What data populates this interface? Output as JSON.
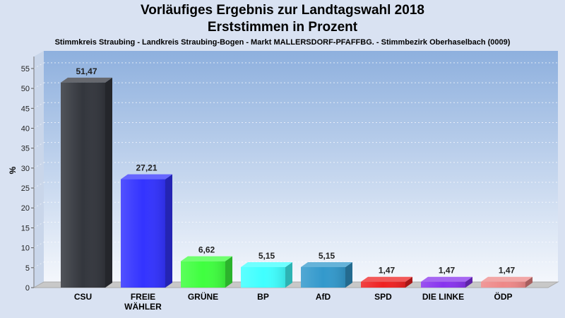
{
  "chart_data": {
    "type": "bar",
    "title": "Vorläufiges Ergebnis zur Landtagswahl 2018",
    "subtitle": "Erststimmen in Prozent",
    "caption": "Stimmkreis Straubing - Landkreis Straubing-Bogen - Markt MALLERSDORF-PFAFFBG. - Stimmbezirk Oberhaselbach (0009)",
    "ylabel": "%",
    "ylim": [
      0,
      58
    ],
    "yticks": [
      0,
      5,
      10,
      15,
      20,
      25,
      30,
      35,
      40,
      45,
      50,
      55
    ],
    "grid": true,
    "categories": [
      "CSU",
      "FREIE WÄHLER",
      "GRÜNE",
      "BP",
      "AfD",
      "SPD",
      "DIE LINKE",
      "ÖDP"
    ],
    "category_lines": [
      [
        "CSU"
      ],
      [
        "FREIE",
        "WÄHLER"
      ],
      [
        "GRÜNE"
      ],
      [
        "BP"
      ],
      [
        "AfD"
      ],
      [
        "SPD"
      ],
      [
        "DIE LINKE"
      ],
      [
        "ÖDP"
      ]
    ],
    "values": [
      51.47,
      27.21,
      6.62,
      5.15,
      5.15,
      1.47,
      1.47,
      1.47
    ],
    "value_labels": [
      "51,47",
      "27,21",
      "6,62",
      "5,15",
      "5,15",
      "1,47",
      "1,47",
      "1,47"
    ],
    "colors": [
      "#33363d",
      "#3333ff",
      "#3fff3f",
      "#40ffff",
      "#3399cc",
      "#ee2222",
      "#8833ee",
      "#ee8888"
    ]
  }
}
